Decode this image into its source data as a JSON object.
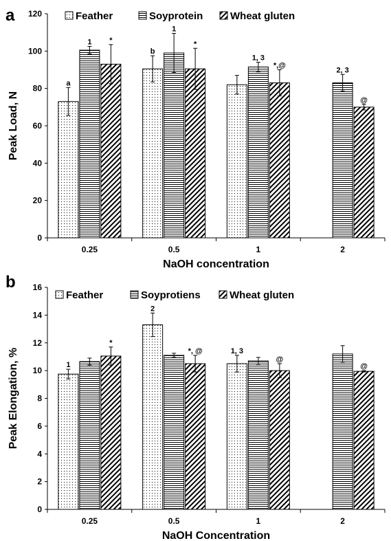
{
  "chart_data": [
    {
      "panel": "a",
      "type": "bar",
      "categories": [
        "0.25",
        "0.5",
        "1",
        "2"
      ],
      "xlabel": "NaOH concentration",
      "ylabel": "Peak Load, N",
      "ylim": [
        0,
        120
      ],
      "yticks": [
        "0",
        "20",
        "40",
        "60",
        "80",
        "100",
        "120"
      ],
      "grid": false,
      "legend_position": "top",
      "series": [
        {
          "name": "Feather",
          "pattern": "dots",
          "values": [
            73,
            90.5,
            82,
            null
          ],
          "errors": [
            7.5,
            7,
            5,
            null
          ],
          "annotations": [
            "a",
            "b",
            "",
            ""
          ]
        },
        {
          "name": "Soyprotein",
          "pattern": "horizontal",
          "values": [
            100.5,
            99,
            91.5,
            83
          ],
          "errors": [
            2,
            10.5,
            2.5,
            4.5
          ],
          "annotations": [
            "1",
            "1",
            "1, 3",
            "2, 3"
          ]
        },
        {
          "name": "Wheat gluten",
          "pattern": "diagonal",
          "values": [
            93,
            90.5,
            83,
            70
          ],
          "errors": [
            10.5,
            11,
            7,
            1.5
          ],
          "annotations": [
            "*",
            "*",
            "*,@",
            "@"
          ]
        }
      ]
    },
    {
      "panel": "b",
      "type": "bar",
      "categories": [
        "0.25",
        "0.5",
        "1",
        "2"
      ],
      "xlabel": "NaOH Concentration",
      "ylabel": "Peak Elongation, %",
      "ylim": [
        0,
        16
      ],
      "yticks": [
        "0",
        "2",
        "4",
        "6",
        "8",
        "10",
        "12",
        "14",
        "16"
      ],
      "grid": false,
      "legend_position": "top",
      "series": [
        {
          "name": "Feather",
          "pattern": "dots",
          "values": [
            9.75,
            13.3,
            10.5,
            null
          ],
          "errors": [
            0.35,
            0.85,
            0.6,
            null
          ],
          "annotations": [
            "1",
            "2",
            "1, 3",
            ""
          ]
        },
        {
          "name": "Soyprotiens",
          "pattern": "horizontal",
          "values": [
            10.65,
            11.1,
            10.7,
            11.2
          ],
          "errors": [
            0.25,
            0.15,
            0.25,
            0.6
          ],
          "annotations": [
            "",
            "",
            "",
            ""
          ]
        },
        {
          "name": "Wheat gluten",
          "pattern": "diagonal",
          "values": [
            11.05,
            10.5,
            10,
            9.95
          ],
          "errors": [
            0.65,
            0.6,
            0.5,
            0.05
          ],
          "annotations": [
            "*",
            "*, @",
            "@",
            "@"
          ]
        }
      ]
    }
  ]
}
